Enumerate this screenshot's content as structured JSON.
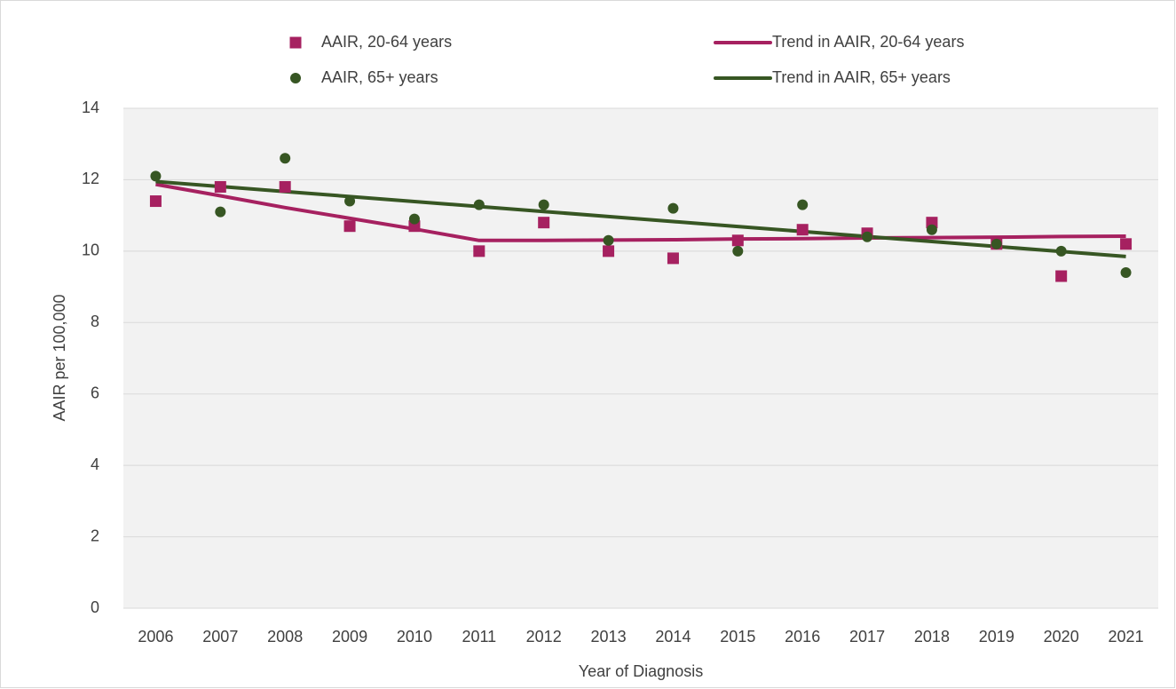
{
  "chart_data": {
    "type": "line",
    "x_label": "Year of Diagnosis",
    "y_label": "AAIR per 100,000",
    "categories": [
      "2006",
      "2007",
      "2008",
      "2009",
      "2010",
      "2011",
      "2012",
      "2013",
      "2014",
      "2015",
      "2016",
      "2017",
      "2018",
      "2019",
      "2020",
      "2021"
    ],
    "series": [
      {
        "name": "AAIR, 20-64 years",
        "color": "#a62160",
        "kind": "scatter",
        "marker": "square",
        "values": [
          11.4,
          11.8,
          11.8,
          10.7,
          10.7,
          10.0,
          10.8,
          10.0,
          9.8,
          10.3,
          10.6,
          10.5,
          10.8,
          10.2,
          9.3,
          10.2
        ]
      },
      {
        "name": "Trend in AAIR, 20-64 years",
        "color": "#a62160",
        "kind": "line",
        "values": [
          11.87,
          11.55,
          11.22,
          10.92,
          10.62,
          10.3,
          10.3,
          10.31,
          10.32,
          10.34,
          10.35,
          10.37,
          10.38,
          10.39,
          10.41,
          10.42
        ]
      },
      {
        "name": "AAIR, 65+ years",
        "color": "#375623",
        "kind": "scatter",
        "marker": "circle",
        "values": [
          12.1,
          11.1,
          12.6,
          11.4,
          10.9,
          11.3,
          11.3,
          10.3,
          11.2,
          10.0,
          11.3,
          10.4,
          10.6,
          10.2,
          10.0,
          9.4
        ]
      },
      {
        "name": "Trend in AAIR, 65+ years",
        "color": "#375623",
        "kind": "line",
        "values": [
          11.95,
          11.81,
          11.67,
          11.53,
          11.39,
          11.25,
          11.11,
          10.97,
          10.83,
          10.69,
          10.55,
          10.41,
          10.27,
          10.13,
          9.99,
          9.85
        ]
      }
    ],
    "ylim": [
      0,
      14
    ],
    "yticks": [
      0,
      2,
      4,
      6,
      8,
      10,
      12,
      14
    ],
    "grid": true,
    "legend": "top"
  }
}
